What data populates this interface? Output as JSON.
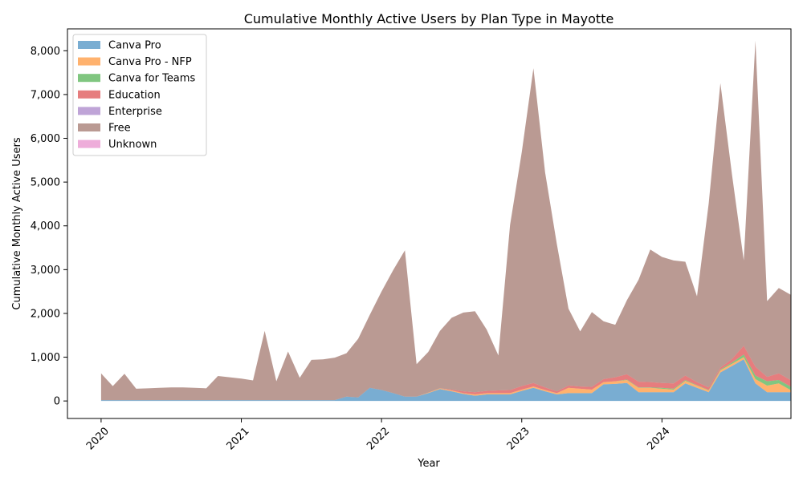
{
  "chart_data": {
    "type": "area",
    "stacked": true,
    "title": "Cumulative Monthly Active Users by Plan Type in Mayotte",
    "xlabel": "Year",
    "ylabel": "Cumulative Monthly Active Users",
    "x_ticks": [
      "2020",
      "2021",
      "2022",
      "2023",
      "2024"
    ],
    "x_tick_values": [
      2020,
      2021,
      2022,
      2023,
      2024
    ],
    "y_ticks": [
      "0",
      "1,000",
      "2,000",
      "3,000",
      "4,000",
      "5,000",
      "6,000",
      "7,000",
      "8,000"
    ],
    "y_tick_values": [
      0,
      1000,
      2000,
      3000,
      4000,
      5000,
      6000,
      7000,
      8000
    ],
    "xlim": [
      2019.76,
      2024.92
    ],
    "ylim": [
      -400,
      8500
    ],
    "grid": false,
    "legend_position": "top-left",
    "x": [
      "2020-01",
      "2020-02",
      "2020-03",
      "2020-04",
      "2020-05",
      "2020-06",
      "2020-07",
      "2020-08",
      "2020-09",
      "2020-10",
      "2020-11",
      "2020-12",
      "2021-01",
      "2021-02",
      "2021-03",
      "2021-04",
      "2021-05",
      "2021-06",
      "2021-07",
      "2021-08",
      "2021-09",
      "2021-10",
      "2021-11",
      "2021-12",
      "2022-01",
      "2022-02",
      "2022-03",
      "2022-04",
      "2022-05",
      "2022-06",
      "2022-07",
      "2022-08",
      "2022-09",
      "2022-10",
      "2022-11",
      "2022-12",
      "2023-01",
      "2023-02",
      "2023-03",
      "2023-04",
      "2023-05",
      "2023-06",
      "2023-07",
      "2023-08",
      "2023-09",
      "2023-10",
      "2023-11",
      "2023-12",
      "2024-01",
      "2024-02",
      "2024-03",
      "2024-04",
      "2024-05",
      "2024-06",
      "2024-07",
      "2024-08",
      "2024-09",
      "2024-10",
      "2024-11",
      "2024-12"
    ],
    "series": [
      {
        "name": "Canva Pro",
        "color": "#1f77b4",
        "values": [
          20,
          20,
          20,
          20,
          20,
          20,
          20,
          20,
          20,
          20,
          20,
          20,
          20,
          20,
          20,
          20,
          20,
          20,
          20,
          20,
          20,
          100,
          80,
          300,
          250,
          180,
          100,
          100,
          180,
          270,
          220,
          160,
          120,
          150,
          150,
          150,
          230,
          300,
          220,
          150,
          180,
          180,
          180,
          380,
          390,
          410,
          200,
          200,
          200,
          200,
          400,
          300,
          200,
          650,
          800,
          950,
          400,
          200,
          200,
          200
        ]
      },
      {
        "name": "Canva Pro - NFP",
        "color": "#ff7f0e",
        "values": [
          0,
          0,
          0,
          0,
          0,
          0,
          0,
          0,
          0,
          0,
          0,
          0,
          0,
          0,
          0,
          0,
          0,
          0,
          0,
          0,
          0,
          0,
          0,
          0,
          0,
          0,
          0,
          0,
          10,
          20,
          20,
          20,
          30,
          30,
          30,
          30,
          30,
          30,
          30,
          30,
          120,
          100,
          80,
          50,
          60,
          70,
          100,
          100,
          80,
          60,
          60,
          50,
          40,
          50,
          50,
          50,
          100,
          150,
          200,
          50
        ]
      },
      {
        "name": "Canva for Teams",
        "color": "#2ca02c",
        "values": [
          0,
          0,
          0,
          0,
          0,
          0,
          0,
          0,
          0,
          0,
          0,
          0,
          0,
          0,
          0,
          0,
          0,
          0,
          0,
          0,
          0,
          0,
          0,
          0,
          0,
          0,
          0,
          0,
          0,
          0,
          0,
          0,
          0,
          0,
          0,
          0,
          0,
          0,
          0,
          0,
          0,
          0,
          0,
          0,
          0,
          10,
          10,
          10,
          20,
          20,
          20,
          10,
          10,
          20,
          30,
          60,
          80,
          100,
          80,
          80
        ]
      },
      {
        "name": "Education",
        "color": "#d62728",
        "values": [
          0,
          0,
          0,
          0,
          0,
          0,
          0,
          0,
          0,
          0,
          0,
          0,
          0,
          0,
          0,
          0,
          0,
          0,
          0,
          0,
          0,
          0,
          0,
          0,
          0,
          0,
          0,
          0,
          0,
          0,
          20,
          40,
          50,
          50,
          60,
          70,
          80,
          80,
          60,
          40,
          50,
          50,
          60,
          70,
          90,
          120,
          130,
          120,
          110,
          120,
          100,
          70,
          60,
          40,
          80,
          200,
          200,
          100,
          150,
          150
        ]
      },
      {
        "name": "Enterprise",
        "color": "#9467bd",
        "values": [
          0,
          0,
          0,
          0,
          0,
          0,
          0,
          0,
          0,
          0,
          0,
          0,
          0,
          0,
          0,
          0,
          0,
          0,
          0,
          0,
          0,
          0,
          0,
          0,
          0,
          0,
          0,
          0,
          0,
          0,
          0,
          0,
          0,
          0,
          0,
          0,
          0,
          0,
          0,
          0,
          0,
          0,
          0,
          0,
          0,
          0,
          0,
          0,
          0,
          0,
          0,
          0,
          0,
          0,
          0,
          0,
          0,
          0,
          0,
          0
        ]
      },
      {
        "name": "Free",
        "color": "#8c564b",
        "values": [
          610,
          320,
          600,
          260,
          270,
          280,
          290,
          290,
          280,
          270,
          550,
          520,
          490,
          450,
          1580,
          430,
          1110,
          510,
          920,
          930,
          970,
          990,
          1340,
          1670,
          2250,
          2810,
          3340,
          740,
          930,
          1310,
          1640,
          1800,
          1850,
          1400,
          800,
          3770,
          5340,
          7190,
          4910,
          3370,
          1760,
          1260,
          1710,
          1320,
          1200,
          1690,
          2330,
          3030,
          2880,
          2810,
          2600,
          1960,
          4200,
          6500,
          4200,
          1950,
          7450,
          1730,
          1950,
          1950
        ]
      },
      {
        "name": "Unknown",
        "color": "#e377c2",
        "values": [
          0,
          0,
          0,
          0,
          0,
          0,
          0,
          0,
          0,
          0,
          0,
          0,
          0,
          0,
          0,
          0,
          0,
          0,
          0,
          0,
          0,
          0,
          0,
          0,
          0,
          0,
          0,
          0,
          0,
          0,
          0,
          0,
          0,
          0,
          0,
          0,
          0,
          0,
          0,
          0,
          0,
          0,
          0,
          0,
          0,
          0,
          0,
          0,
          0,
          0,
          0,
          0,
          0,
          0,
          0,
          0,
          0,
          0,
          0,
          0
        ]
      }
    ]
  }
}
